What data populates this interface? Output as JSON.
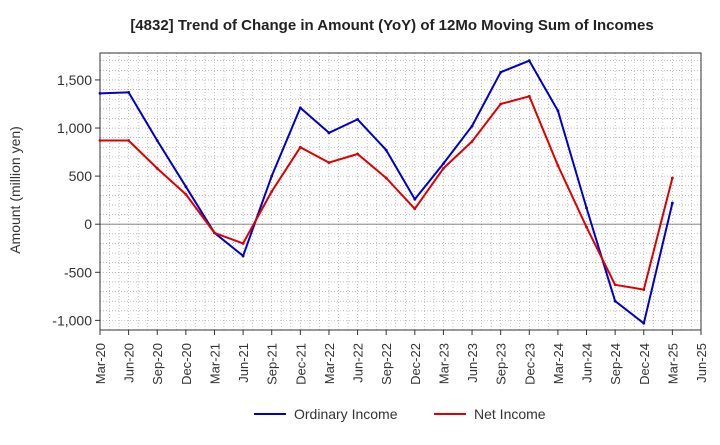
{
  "chart_data": {
    "type": "line",
    "title": "[4832]  Trend of Change in Amount (YoY) of 12Mo Moving Sum of Incomes",
    "xlabel": "",
    "ylabel": "Amount (million yen)",
    "ylim": [
      -1100,
      1780
    ],
    "yticks": [
      -1000,
      -500,
      0,
      500,
      1000,
      1500
    ],
    "ytick_labels": [
      "-1,000",
      "-500",
      "0",
      "500",
      "1,000",
      "1,500"
    ],
    "grid": true,
    "legend_position": "bottom-center",
    "x_tick_labels": [
      "Mar-20",
      "Jun-20",
      "Sep-20",
      "Dec-20",
      "Mar-21",
      "Jun-21",
      "Sep-21",
      "Dec-21",
      "Mar-22",
      "Jun-22",
      "Sep-22",
      "Dec-22",
      "Mar-23",
      "Jun-23",
      "Sep-23",
      "Dec-23",
      "Mar-24",
      "Jun-24",
      "Sep-24",
      "Dec-24",
      "Mar-25",
      "Jun-25"
    ],
    "series": [
      {
        "name": "Ordinary Income",
        "color": "#0000cc",
        "values": [
          1360,
          1370,
          870,
          390,
          -90,
          -330,
          500,
          1210,
          950,
          1090,
          770,
          260,
          630,
          1020,
          1580,
          1700,
          1180,
          170,
          -800,
          -1030,
          220,
          null
        ]
      },
      {
        "name": "Net Income",
        "color": "#dd0000",
        "values": [
          870,
          870,
          580,
          310,
          -90,
          -200,
          340,
          800,
          640,
          730,
          480,
          160,
          580,
          860,
          1250,
          1330,
          610,
          -30,
          -630,
          -680,
          480,
          null
        ]
      }
    ]
  }
}
